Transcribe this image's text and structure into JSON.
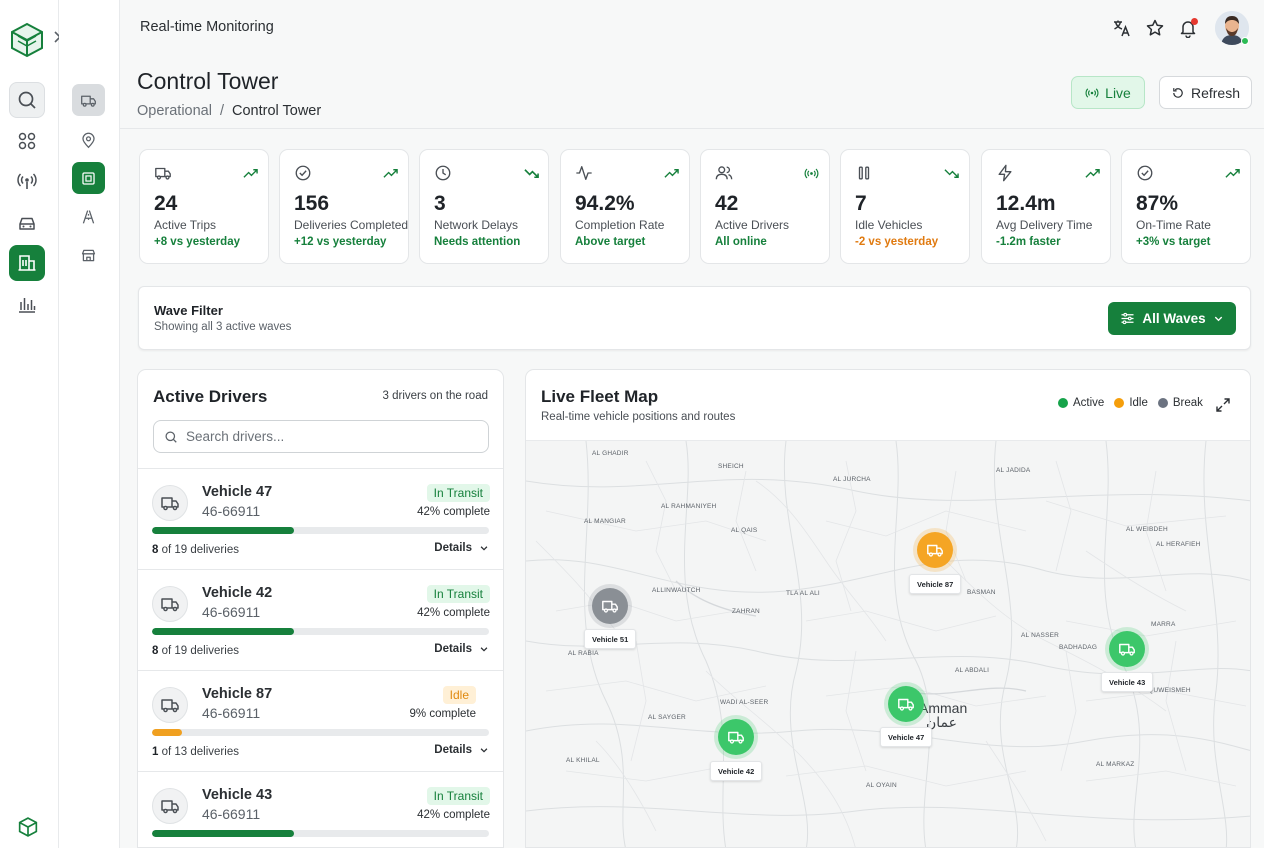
{
  "topbar": {
    "title": "Real-time Monitoring"
  },
  "header": {
    "page_title": "Control Tower",
    "breadcrumb": {
      "parent": "Operational",
      "separator": "/",
      "current": "Control Tower"
    },
    "live_label": "Live",
    "refresh_label": "Refresh"
  },
  "kpis": [
    {
      "icon": "truck-icon",
      "value": "24",
      "label": "Active Trips",
      "sub": "+8 vs yesterday",
      "trend": "up"
    },
    {
      "icon": "check-circle-icon",
      "value": "156",
      "label": "Deliveries Completed",
      "sub": "+12 vs yesterday",
      "trend": "up"
    },
    {
      "icon": "clock-icon",
      "value": "3",
      "label": "Network Delays",
      "sub": "Needs attention",
      "trend": "down"
    },
    {
      "icon": "activity-icon",
      "value": "94.2%",
      "label": "Completion Rate",
      "sub": "Above target",
      "trend": "up"
    },
    {
      "icon": "users-icon",
      "value": "42",
      "label": "Active Drivers",
      "sub": "All online",
      "trend": "live"
    },
    {
      "icon": "pause-icon",
      "value": "7",
      "label": "Idle Vehicles",
      "sub": "-2 vs yesterday",
      "trend": "down"
    },
    {
      "icon": "bolt-icon",
      "value": "12.4m",
      "label": "Avg Delivery Time",
      "sub": "-1.2m faster",
      "trend": "up"
    },
    {
      "icon": "check-circle-icon",
      "value": "87%",
      "label": "On-Time Rate",
      "sub": "+3% vs target",
      "trend": "up"
    }
  ],
  "wave_filter": {
    "title": "Wave Filter",
    "subtitle": "Showing all 3 active waves",
    "button_label": "All Waves"
  },
  "drivers_panel": {
    "title": "Active Drivers",
    "count_text": "3 drivers on the road",
    "search_placeholder": "Search drivers...",
    "details_label": "Details",
    "drivers": [
      {
        "name": "Vehicle 47",
        "plate": "46-66911",
        "status": "In Transit",
        "percent_text": "42% complete",
        "progress": 0.42,
        "done": "8",
        "of_text": "of 19 deliveries"
      },
      {
        "name": "Vehicle 42",
        "plate": "46-66911",
        "status": "In Transit",
        "percent_text": "42% complete",
        "progress": 0.42,
        "done": "8",
        "of_text": "of 19 deliveries"
      },
      {
        "name": "Vehicle 87",
        "plate": "46-66911",
        "status": "Idle",
        "percent_text": "9% complete",
        "progress": 0.09,
        "done": "1",
        "of_text": "of 13 deliveries"
      },
      {
        "name": "Vehicle 43",
        "plate": "46-66911",
        "status": "In Transit",
        "percent_text": "42% complete",
        "progress": 0.42,
        "done": "",
        "of_text": ""
      }
    ]
  },
  "map_panel": {
    "title": "Live Fleet Map",
    "subtitle": "Real-time vehicle positions and routes",
    "legend": [
      {
        "label": "Active",
        "color": "#16a34a"
      },
      {
        "label": "Idle",
        "color": "#f59e0b"
      },
      {
        "label": "Break",
        "color": "#6b7280"
      }
    ],
    "city_label": "Amman",
    "city_label_ar": "عمان",
    "vehicles": [
      {
        "label": "Vehicle 87",
        "status": "idle"
      },
      {
        "label": "Vehicle 51",
        "status": "broken"
      },
      {
        "label": "Vehicle 43",
        "status": "active"
      },
      {
        "label": "Vehicle 47",
        "status": "active"
      },
      {
        "label": "Vehicle 42",
        "status": "active"
      }
    ],
    "place_labels": [
      "AL GHADIR",
      "SHEICH",
      "AL JURCHA",
      "AL JADIDA",
      "AL RAHMANIYEH",
      "AL QAIS",
      "AL WEIBDEH",
      "AL MANGIAR",
      "TLA AL ALI",
      "ZAHRAN",
      "BASMAN",
      "ALLINWAUTCH",
      "AL ABDALI",
      "WADI AL-SEER",
      "AL RABIA",
      "AL NASSER",
      "AL SAYGER",
      "AL QUWEISMEH",
      "AL KHILAL",
      "AL OYAIN",
      "MARRA",
      "AL MARKAZ",
      "BADHADAG",
      "AL HERAFIEH"
    ]
  }
}
